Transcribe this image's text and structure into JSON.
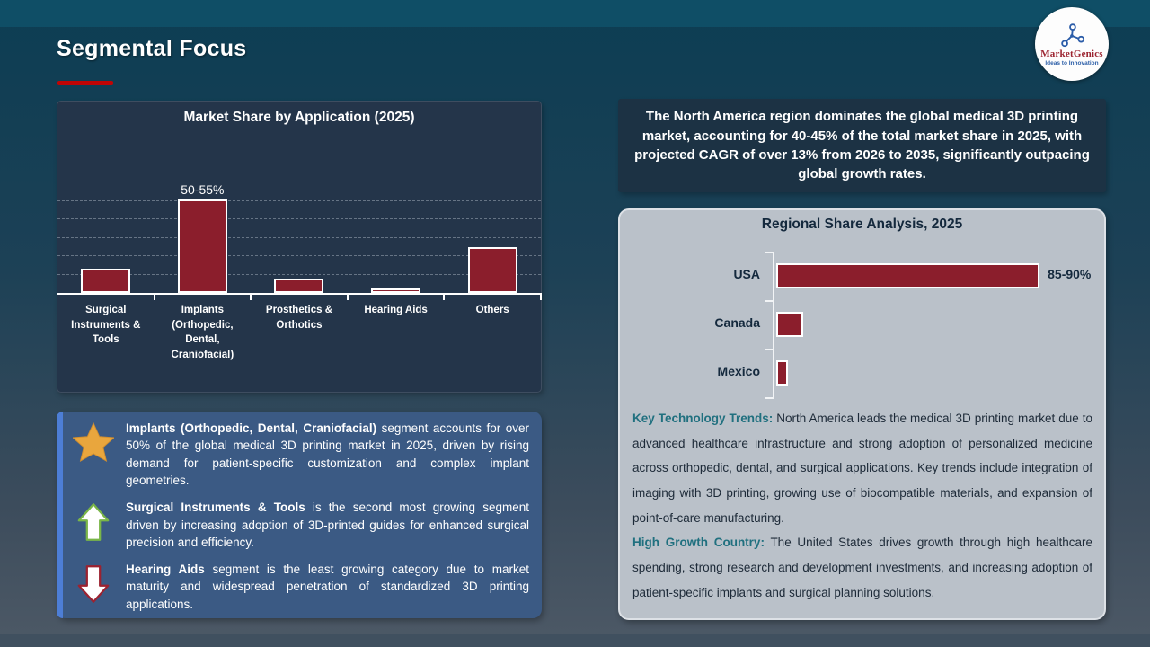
{
  "slide": {
    "title": "Segmental Focus"
  },
  "logo": {
    "name": "MarketGenics",
    "tagline": "Ideas to Innovation"
  },
  "region_summary": "The North America region dominates the global medical  3D printing market, accounting for 40-45% of the total market share in 2025, with projected CAGR of over 13% from 2026 to 2035, significantly outpacing global growth rates.",
  "chart_data": [
    {
      "type": "bar",
      "orientation": "vertical",
      "title": "Market Share by Application (2025)",
      "categories": [
        "Surgical Instruments & Tools",
        "Implants (Orthopedic, Dental, Craniofacial)",
        "Prosthetics & Orthotics",
        "Hearing Aids",
        "Others"
      ],
      "values": [
        13,
        52.5,
        8,
        2.5,
        25
      ],
      "data_labels": [
        "",
        "50-55%",
        "",
        "",
        ""
      ],
      "xlabel": "",
      "ylabel": "",
      "ylim": [
        0,
        60
      ],
      "grid": true,
      "legend": false
    },
    {
      "type": "bar",
      "orientation": "horizontal",
      "title": "Regional Share Analysis, 2025",
      "categories": [
        "USA",
        "Canada",
        "Mexico"
      ],
      "values": [
        87.5,
        9,
        4
      ],
      "data_labels": [
        "85-90%",
        "",
        ""
      ],
      "xlabel": "",
      "ylabel": "",
      "xlim": [
        0,
        100
      ],
      "grid": false,
      "legend": false
    }
  ],
  "insights": {
    "items": [
      {
        "icon": "star",
        "bold": "Implants (Orthopedic, Dental, Craniofacial)",
        "text": " segment accounts for over 50% of the global medical  3D printing market in 2025, driven by rising demand for patient-specific customization and complex implant geometries."
      },
      {
        "icon": "arrow-up",
        "bold": "Surgical Instruments & Tools",
        "text": " is the second most growing segment driven by increasing adoption of 3D-printed guides for enhanced surgical precision and efficiency."
      },
      {
        "icon": "arrow-down",
        "bold": "Hearing Aids",
        "text": " segment is the least growing category due to market maturity and widespread penetration of standardized 3D printing applications."
      }
    ]
  },
  "regional_notes": [
    {
      "label": "Key Technology Trends:",
      "text": " North America leads the medical 3D printing market due to advanced healthcare infrastructure and strong adoption of personalized medicine across orthopedic, dental, and surgical applications. Key trends include integration of imaging with 3D printing, growing use of biocompatible materials, and expansion of point-of-care manufacturing."
    },
    {
      "label": "High Growth Country:",
      "text": " The United States drives growth through high healthcare spending, strong research and development investments, and increasing adoption of patient-specific implants and surgical planning solutions."
    }
  ],
  "colors": {
    "accent-red": "#c00505",
    "bar-maroon": "#8b1e2c",
    "panel-navy": "#24354a",
    "summary-navy": "#1c3244",
    "insight-blue": "#3b5a84",
    "stripe-blue": "#4d7ed6",
    "gray-panel": "#bac1c9",
    "teal-lead": "#20707f",
    "star-gold": "#e9a63d",
    "arrow-green": "#7ab648",
    "arrow-red": "#9c2230"
  }
}
